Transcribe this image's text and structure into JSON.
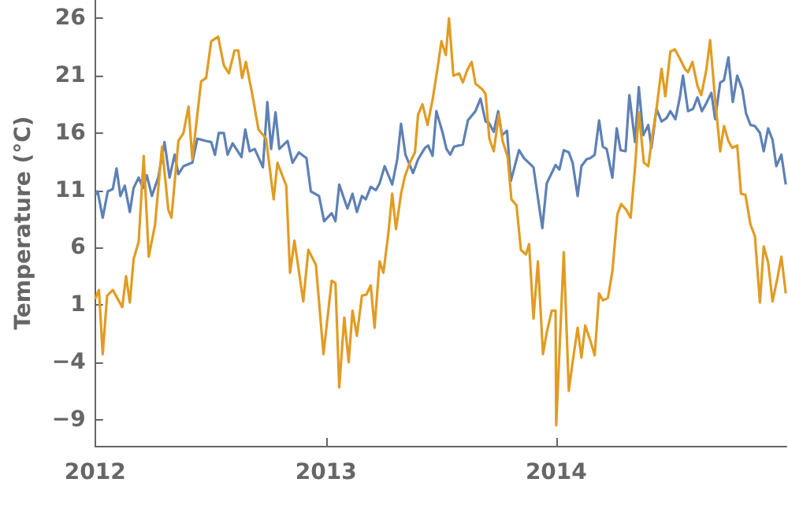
{
  "chart_data": {
    "type": "line",
    "ylabel": "Temperature (°C)",
    "xlim": [
      "2012-01-01",
      "2015-01-01"
    ],
    "xticks": [
      "2012",
      "2013",
      "2014"
    ],
    "ylim": [
      -11.3,
      27.6
    ],
    "yticks": [
      {
        "value": -9,
        "label": "−9"
      },
      {
        "value": -4,
        "label": "−4"
      },
      1,
      6,
      11,
      16,
      21,
      26
    ],
    "series": [
      {
        "color": "#5e81b5",
        "x": [
          "2012-01-01",
          "2012-01-05",
          "2012-01-13",
          "2012-01-21",
          "2012-01-29",
          "2012-02-04",
          "2012-02-10",
          "2012-02-17",
          "2012-02-25",
          "2012-03-02",
          "2012-03-10",
          "2012-03-17",
          "2012-03-23",
          "2012-03-31",
          "2012-04-10",
          "2012-04-20",
          "2012-04-28",
          "2012-05-06",
          "2012-05-12",
          "2012-05-20",
          "2012-06-03",
          "2012-06-11",
          "2012-06-25",
          "2012-07-03",
          "2012-07-09",
          "2012-07-15",
          "2012-07-23",
          "2012-07-29",
          "2012-08-06",
          "2012-08-20",
          "2012-08-26",
          "2012-09-02",
          "2012-09-10",
          "2012-09-23",
          "2012-09-30",
          "2012-10-06",
          "2012-10-13",
          "2012-10-19",
          "2012-11-01",
          "2012-11-09",
          "2012-11-19",
          "2012-12-01",
          "2012-12-08",
          "2012-12-21",
          "2012-12-29",
          "2013-01-10",
          "2013-01-16",
          "2013-01-22",
          "2013-02-04",
          "2013-02-12",
          "2013-02-19",
          "2013-02-27",
          "2013-03-05",
          "2013-03-13",
          "2013-03-21",
          "2013-03-27",
          "2013-04-04",
          "2013-04-16",
          "2013-04-24",
          "2013-04-30",
          "2013-05-07",
          "2013-05-19",
          "2013-05-27",
          "2013-06-07",
          "2013-06-12",
          "2013-06-19",
          "2013-06-25",
          "2013-07-05",
          "2013-07-11",
          "2013-07-17",
          "2013-07-23",
          "2013-08-06",
          "2013-08-14",
          "2013-08-26",
          "2013-09-03",
          "2013-09-11",
          "2013-09-16",
          "2013-09-24",
          "2013-10-01",
          "2013-10-07",
          "2013-10-15",
          "2013-10-21",
          "2013-11-03",
          "2013-11-11",
          "2013-11-26",
          "2013-12-10",
          "2013-12-17",
          "2013-12-31",
          "2014-01-06",
          "2014-01-13",
          "2014-01-21",
          "2014-01-27",
          "2014-02-04",
          "2014-02-10",
          "2014-02-18",
          "2014-02-24",
          "2014-03-03",
          "2014-03-10",
          "2014-03-16",
          "2014-03-22",
          "2014-03-31",
          "2014-04-07",
          "2014-04-13",
          "2014-04-21",
          "2014-04-27",
          "2014-05-06",
          "2014-05-12",
          "2014-05-19",
          "2014-05-27",
          "2014-06-01",
          "2014-06-09",
          "2014-06-17",
          "2014-06-25",
          "2014-07-01",
          "2014-07-09",
          "2014-07-16",
          "2014-07-21",
          "2014-07-29",
          "2014-08-06",
          "2014-08-13",
          "2014-08-20",
          "2014-08-27",
          "2014-09-04",
          "2014-09-10",
          "2014-09-18",
          "2014-09-24",
          "2014-10-01",
          "2014-10-08",
          "2014-10-15",
          "2014-10-23",
          "2014-10-29",
          "2014-11-05",
          "2014-11-12",
          "2014-11-20",
          "2014-11-26",
          "2014-12-03",
          "2014-12-10",
          "2014-12-16",
          "2014-12-24",
          "2014-12-31"
        ],
        "values": [
          10.6,
          10.9,
          8.6,
          10.9,
          11.1,
          12.9,
          10.5,
          11.4,
          9.1,
          11.2,
          12.1,
          11.2,
          12.3,
          10.5,
          12.1,
          15.2,
          12.1,
          14.1,
          12.4,
          13.1,
          13.4,
          15.5,
          15.3,
          15.2,
          14.1,
          16.0,
          16.0,
          14.1,
          15.1,
          13.9,
          16.3,
          14.4,
          14.6,
          13.0,
          18.7,
          14.6,
          17.8,
          14.6,
          15.3,
          13.4,
          14.3,
          13.8,
          10.9,
          10.5,
          8.3,
          9.0,
          8.3,
          11.5,
          9.4,
          10.7,
          9.1,
          10.5,
          10.2,
          11.3,
          11.0,
          11.6,
          13.1,
          11.5,
          13.7,
          16.8,
          14.1,
          12.5,
          13.7,
          14.7,
          14.9,
          14.0,
          17.9,
          16.0,
          14.6,
          14.1,
          14.8,
          15.0,
          17.1,
          17.9,
          19.0,
          17.0,
          16.9,
          16.1,
          17.9,
          15.8,
          16.2,
          11.8,
          14.5,
          13.8,
          13.0,
          7.7,
          11.6,
          13.2,
          12.8,
          14.5,
          14.3,
          13.4,
          10.5,
          13.1,
          13.7,
          13.8,
          14.1,
          17.1,
          14.8,
          14.6,
          12.1,
          16.4,
          14.5,
          14.4,
          19.3,
          15.2,
          20.0,
          15.8,
          16.7,
          14.7,
          18.1,
          17.0,
          17.3,
          17.9,
          17.2,
          19.1,
          21.0,
          17.9,
          18.1,
          19.1,
          17.9,
          18.6,
          19.5,
          17.2,
          20.4,
          20.6,
          22.6,
          18.7,
          21.0,
          19.8,
          17.7,
          16.7,
          16.6,
          16.0,
          14.4,
          16.4,
          15.4,
          13.1,
          14.1,
          11.5
        ]
      },
      {
        "color": "#e19c24",
        "x": [
          "2012-01-01",
          "2012-01-07",
          "2012-01-13",
          "2012-01-20",
          "2012-01-29",
          "2012-02-13",
          "2012-02-19",
          "2012-02-25",
          "2012-03-02",
          "2012-03-10",
          "2012-03-18",
          "2012-03-26",
          "2012-04-05",
          "2012-04-16",
          "2012-04-26",
          "2012-05-01",
          "2012-05-12",
          "2012-05-20",
          "2012-05-28",
          "2012-06-03",
          "2012-06-17",
          "2012-06-25",
          "2012-07-03",
          "2012-07-14",
          "2012-07-23",
          "2012-07-31",
          "2012-08-09",
          "2012-08-15",
          "2012-08-21",
          "2012-08-27",
          "2012-09-06",
          "2012-09-16",
          "2012-09-28",
          "2012-10-10",
          "2012-10-16",
          "2012-10-30",
          "2012-11-05",
          "2012-11-12",
          "2012-11-26",
          "2012-12-04",
          "2012-12-16",
          "2012-12-28",
          "2013-01-10",
          "2013-01-16",
          "2013-01-22",
          "2013-01-30",
          "2013-02-06",
          "2013-02-12",
          "2013-02-19",
          "2013-02-27",
          "2013-03-06",
          "2013-03-13",
          "2013-03-19",
          "2013-03-27",
          "2013-04-02",
          "2013-04-10",
          "2013-04-16",
          "2013-04-22",
          "2013-04-30",
          "2013-05-06",
          "2013-05-14",
          "2013-05-22",
          "2013-05-27",
          "2013-06-03",
          "2013-06-11",
          "2013-06-19",
          "2013-06-27",
          "2013-07-03",
          "2013-07-10",
          "2013-07-15",
          "2013-07-22",
          "2013-07-31",
          "2013-08-06",
          "2013-08-13",
          "2013-08-20",
          "2013-08-26",
          "2013-09-06",
          "2013-09-11",
          "2013-09-17",
          "2013-09-24",
          "2013-10-02",
          "2013-10-08",
          "2013-10-16",
          "2013-10-22",
          "2013-10-30",
          "2013-11-06",
          "2013-11-14",
          "2013-11-19",
          "2013-11-26",
          "2013-12-03",
          "2013-12-11",
          "2013-12-17",
          "2013-12-25",
          "2013-12-31",
          "2014-01-01",
          "2014-01-13",
          "2014-01-21",
          "2014-01-27",
          "2014-02-04",
          "2014-02-10",
          "2014-02-16",
          "2014-02-24",
          "2014-03-03",
          "2014-03-10",
          "2014-03-16",
          "2014-03-24",
          "2014-03-31",
          "2014-04-08",
          "2014-04-14",
          "2014-04-22",
          "2014-04-29",
          "2014-05-06",
          "2014-05-12",
          "2014-05-20",
          "2014-05-27",
          "2014-06-03",
          "2014-06-09",
          "2014-06-17",
          "2014-06-23",
          "2014-07-01",
          "2014-07-08",
          "2014-07-16",
          "2014-07-24",
          "2014-07-29",
          "2014-08-05",
          "2014-08-13",
          "2014-08-19",
          "2014-08-27",
          "2014-09-02",
          "2014-09-10",
          "2014-09-18",
          "2014-09-24",
          "2014-10-01",
          "2014-10-07",
          "2014-10-15",
          "2014-10-21",
          "2014-10-28",
          "2014-11-05",
          "2014-11-12",
          "2014-11-20",
          "2014-11-26",
          "2014-12-03",
          "2014-12-10",
          "2014-12-18",
          "2014-12-24",
          "2014-12-31"
        ],
        "values": [
          1.5,
          2.3,
          -3.3,
          1.8,
          2.3,
          0.8,
          3.5,
          1.2,
          5.0,
          6.5,
          14.0,
          5.2,
          8.0,
          14.8,
          9.3,
          8.6,
          15.3,
          16.0,
          18.3,
          13.7,
          20.5,
          20.8,
          24.0,
          24.4,
          21.9,
          21.2,
          23.2,
          23.2,
          20.8,
          22.2,
          19.4,
          16.3,
          15.5,
          10.2,
          13.4,
          11.4,
          3.8,
          6.6,
          1.3,
          5.8,
          4.5,
          -3.3,
          3.1,
          2.9,
          -6.2,
          -0.1,
          -4.0,
          0.5,
          -1.7,
          1.8,
          1.9,
          2.7,
          -1.0,
          4.8,
          3.8,
          7.3,
          10.7,
          7.6,
          10.7,
          12.2,
          13.4,
          14.3,
          17.6,
          18.5,
          16.7,
          18.9,
          21.7,
          24.0,
          22.8,
          26.0,
          21.0,
          21.2,
          20.4,
          21.5,
          22.2,
          20.3,
          19.8,
          19.4,
          15.5,
          14.4,
          17.6,
          15.3,
          13.9,
          10.2,
          9.7,
          5.8,
          5.4,
          6.3,
          -0.2,
          4.8,
          -3.3,
          -1.4,
          0.5,
          0.5,
          -9.5,
          5.6,
          -6.5,
          -4.0,
          -1.0,
          -3.6,
          -0.8,
          -2.1,
          -3.4,
          2.0,
          1.4,
          1.6,
          3.9,
          8.9,
          9.8,
          9.3,
          8.6,
          13.0,
          17.8,
          13.4,
          13.1,
          16.0,
          18.1,
          21.6,
          19.2,
          23.1,
          23.3,
          22.5,
          21.6,
          21.3,
          22.2,
          20.1,
          19.3,
          21.5,
          24.1,
          18.9,
          14.4,
          16.6,
          15.3,
          14.7,
          14.9,
          10.7,
          10.6,
          8.0,
          7.0,
          1.2,
          6.1,
          4.7,
          1.3,
          3.4,
          5.2,
          2.0
        ]
      }
    ]
  }
}
